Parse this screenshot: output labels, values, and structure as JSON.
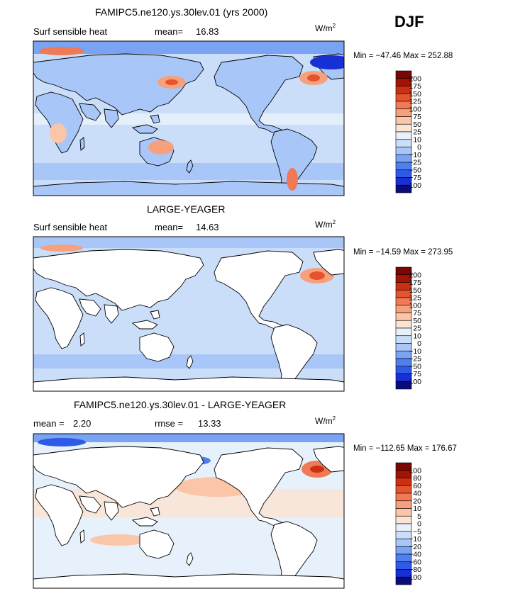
{
  "season": "DJF",
  "units_base": "W/m",
  "units_sup": "2",
  "palette_main": [
    "#0b0b7a",
    "#1630d6",
    "#2e5ae8",
    "#4f7fef",
    "#7aa3f4",
    "#a9c6f8",
    "#cadef9",
    "#e6f1fb",
    "#fde4d2",
    "#fbc5a8",
    "#f6a07c",
    "#ef7a55",
    "#e5532f",
    "#cc3012",
    "#a21405",
    "#7a0703"
  ],
  "panels": [
    {
      "title": "FAMIPC5.ne120.ys.30lev.01 (yrs 2000)",
      "left_label": "Surf sensible heat",
      "stat_label": "mean=",
      "stat_value": "16.83",
      "min_max": "Min = −47.46  Max = 252.88",
      "colorbar_labels": [
        "200",
        "175",
        "150",
        "125",
        "100",
        "75",
        "50",
        "25",
        "10",
        "0",
        "−10",
        "−25",
        "−50",
        "−75",
        "−100"
      ],
      "ocean_color": "#cadef9",
      "land_color": "#a9c6f8"
    },
    {
      "title": "LARGE-YEAGER",
      "left_label": "Surf sensible heat",
      "stat_label": "mean=",
      "stat_value": "14.63",
      "min_max": "Min = −14.59  Max = 273.95",
      "colorbar_labels": [
        "200",
        "175",
        "150",
        "125",
        "100",
        "75",
        "50",
        "25",
        "10",
        "0",
        "−10",
        "−25",
        "−50",
        "−75",
        "−100"
      ],
      "ocean_color": "#cadef9",
      "land_color": "#ffffff"
    },
    {
      "title": "FAMIPC5.ne120.ys.30lev.01 - LARGE-YEAGER",
      "left_label": "mean =",
      "left_value": "2.20",
      "stat_label": "rmse =",
      "stat_value": "13.33",
      "min_max": "Min = −112.65  Max = 176.67",
      "colorbar_labels": [
        "100",
        "80",
        "60",
        "40",
        "20",
        "10",
        "5",
        "0",
        "−5",
        "−10",
        "−20",
        "−40",
        "−60",
        "−80",
        "−100"
      ],
      "ocean_color": "#e6f1fb",
      "land_color": "#ffffff"
    }
  ]
}
